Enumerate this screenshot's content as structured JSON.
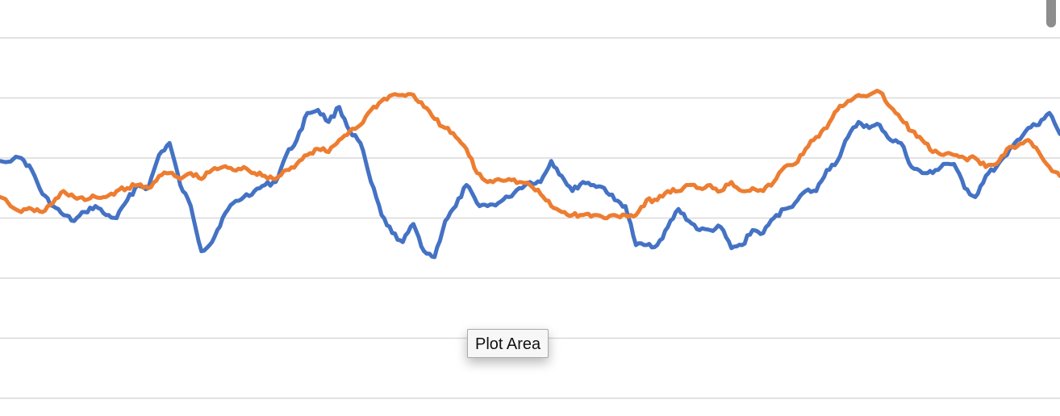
{
  "tooltip": {
    "label": "Plot Area"
  },
  "chart_data": {
    "type": "line",
    "title": "",
    "xlabel": "",
    "ylabel": "",
    "xlim": [
      0,
      100
    ],
    "ylim": [
      0,
      6
    ],
    "grid": true,
    "gridlines_y": [
      0,
      1,
      2,
      3,
      4,
      5,
      6
    ],
    "legend": "none",
    "series": [
      {
        "color": "#4472C4",
        "x": [
          0,
          2,
          3,
          4,
          5,
          6,
          7,
          8,
          9,
          10,
          11,
          12,
          13,
          14,
          15,
          16,
          17,
          18,
          19,
          20,
          21,
          22,
          23,
          24,
          25,
          26,
          27,
          28,
          29,
          30,
          31,
          32,
          33,
          34,
          35,
          36,
          37,
          38,
          39,
          40,
          41,
          42,
          43,
          44,
          45,
          46,
          47,
          48,
          49,
          50,
          51,
          52,
          53,
          54,
          55,
          56,
          57,
          58,
          59,
          60,
          61,
          62,
          63,
          64,
          65,
          66,
          67,
          68,
          69,
          70,
          71,
          72,
          73,
          74,
          75,
          76,
          77,
          78,
          79,
          80,
          81,
          82,
          83,
          84,
          85,
          86,
          87,
          88,
          89,
          90,
          91,
          92,
          93,
          94,
          95,
          96,
          97,
          98,
          99,
          100
        ],
        "y": [
          3.95,
          4.0,
          3.8,
          3.4,
          3.2,
          3.05,
          2.95,
          3.1,
          3.2,
          3.05,
          3.0,
          3.3,
          3.55,
          3.5,
          4.05,
          4.25,
          3.55,
          3.2,
          2.45,
          2.6,
          3.0,
          3.25,
          3.35,
          3.45,
          3.55,
          3.6,
          4.05,
          4.3,
          4.75,
          4.8,
          4.6,
          4.85,
          4.45,
          4.25,
          3.6,
          3.05,
          2.75,
          2.6,
          2.9,
          2.45,
          2.35,
          2.95,
          3.2,
          3.55,
          3.25,
          3.2,
          3.25,
          3.35,
          3.5,
          3.6,
          3.6,
          3.95,
          3.7,
          3.45,
          3.6,
          3.55,
          3.5,
          3.3,
          3.2,
          2.55,
          2.55,
          2.55,
          2.85,
          3.15,
          2.95,
          2.8,
          2.8,
          2.85,
          2.5,
          2.55,
          2.8,
          2.75,
          3.0,
          3.15,
          3.25,
          3.45,
          3.45,
          3.8,
          3.95,
          4.35,
          4.6,
          4.5,
          4.55,
          4.3,
          4.25,
          3.85,
          3.75,
          3.75,
          3.9,
          3.9,
          3.5,
          3.35,
          3.7,
          3.85,
          4.05,
          4.3,
          4.5,
          4.55,
          4.75,
          4.4
        ]
      },
      {
        "color": "#ED7D31",
        "x": [
          0,
          2,
          3,
          4,
          5,
          6,
          7,
          8,
          9,
          10,
          11,
          12,
          13,
          14,
          15,
          16,
          17,
          18,
          19,
          20,
          21,
          22,
          23,
          24,
          25,
          26,
          27,
          28,
          29,
          30,
          31,
          32,
          33,
          34,
          35,
          36,
          37,
          38,
          39,
          40,
          41,
          42,
          43,
          44,
          45,
          46,
          47,
          48,
          49,
          50,
          51,
          52,
          53,
          54,
          55,
          56,
          57,
          58,
          59,
          60,
          61,
          62,
          63,
          64,
          65,
          66,
          67,
          68,
          69,
          70,
          71,
          72,
          73,
          74,
          75,
          76,
          77,
          78,
          79,
          80,
          81,
          82,
          83,
          84,
          85,
          86,
          87,
          88,
          89,
          90,
          91,
          92,
          93,
          94,
          95,
          96,
          97,
          98,
          99,
          100
        ],
        "y": [
          3.35,
          3.1,
          3.15,
          3.1,
          3.25,
          3.45,
          3.35,
          3.3,
          3.35,
          3.35,
          3.45,
          3.5,
          3.55,
          3.5,
          3.7,
          3.75,
          3.65,
          3.75,
          3.65,
          3.8,
          3.85,
          3.8,
          3.85,
          3.75,
          3.7,
          3.65,
          3.8,
          3.9,
          4.05,
          4.15,
          4.1,
          4.3,
          4.45,
          4.55,
          4.8,
          4.95,
          5.05,
          5.05,
          5.05,
          4.85,
          4.65,
          4.5,
          4.35,
          4.15,
          3.75,
          3.6,
          3.65,
          3.65,
          3.6,
          3.55,
          3.4,
          3.2,
          3.1,
          3.05,
          3.05,
          3.05,
          3.0,
          3.05,
          3.05,
          3.05,
          3.3,
          3.3,
          3.45,
          3.45,
          3.55,
          3.5,
          3.55,
          3.45,
          3.6,
          3.45,
          3.5,
          3.45,
          3.6,
          3.85,
          3.9,
          4.15,
          4.35,
          4.5,
          4.8,
          4.95,
          5.05,
          5.05,
          5.1,
          4.85,
          4.65,
          4.45,
          4.3,
          4.1,
          4.05,
          4.05,
          4.0,
          4.0,
          3.85,
          3.9,
          4.15,
          4.2,
          4.3,
          4.1,
          3.85,
          3.7
        ]
      }
    ]
  }
}
